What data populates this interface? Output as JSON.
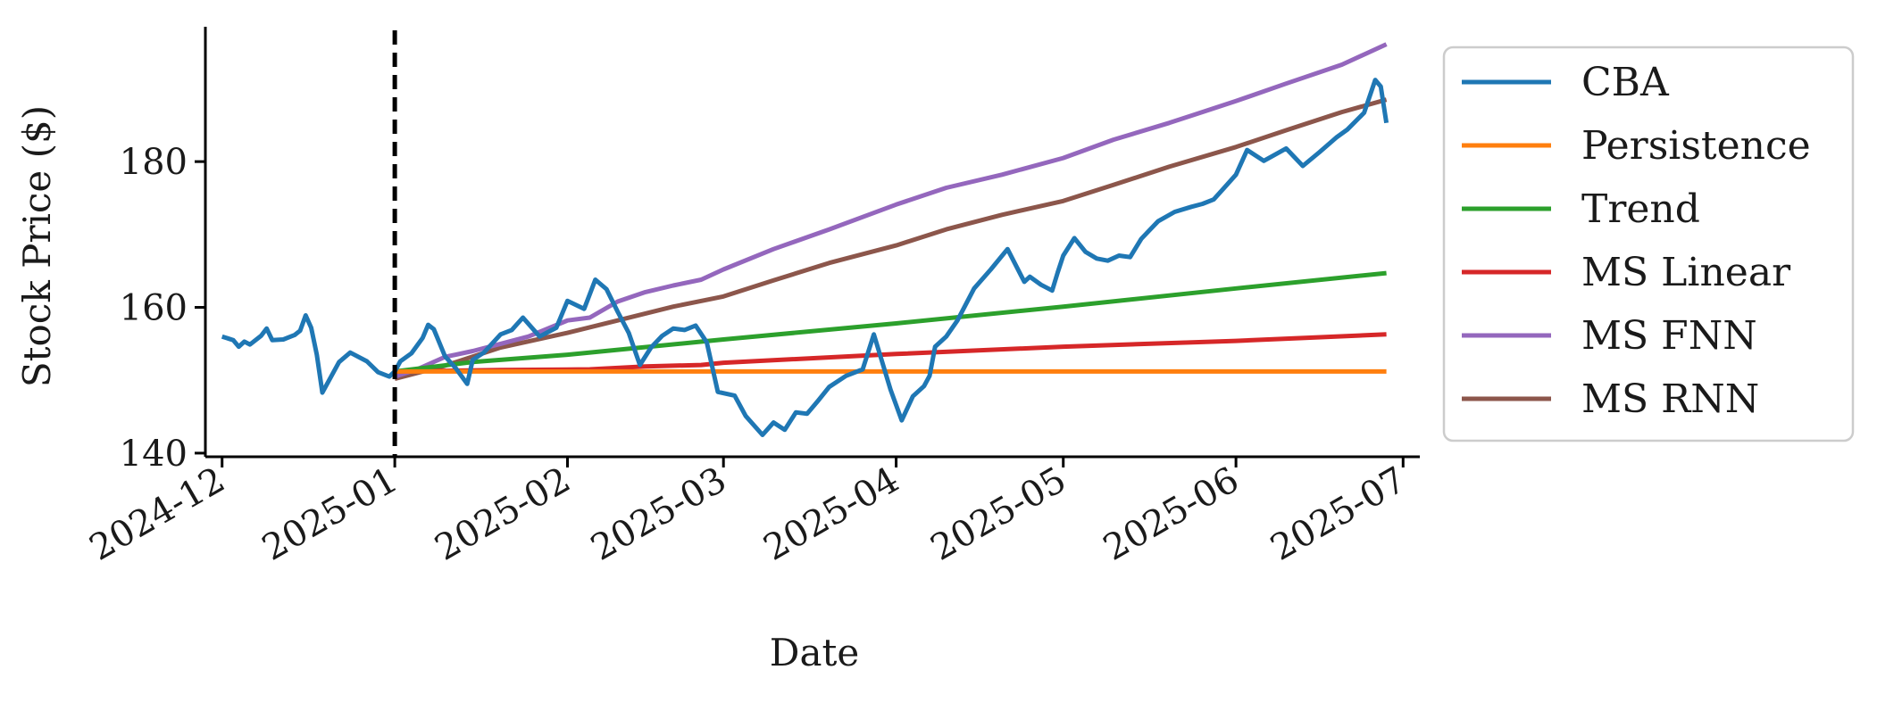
{
  "chart_data": {
    "type": "line",
    "title": "",
    "xlabel": "Date",
    "ylabel": "Stock Price ($)",
    "ylim": [
      139.5,
      198.5
    ],
    "xlim": [
      "2024-11-28",
      "2025-07-04"
    ],
    "y_ticks": [
      140,
      160,
      180
    ],
    "x_ticks": [
      "2024-12-01",
      "2025-01-01",
      "2025-02-01",
      "2025-03-01",
      "2025-04-01",
      "2025-05-01",
      "2025-06-01",
      "2025-07-01"
    ],
    "x_tick_labels": [
      "2024-12",
      "2025-01",
      "2025-02",
      "2025-03",
      "2025-04",
      "2025-05",
      "2025-06",
      "2025-07"
    ],
    "grid": false,
    "legend_position": "outside-right-top",
    "forecast_start": "2025-01-01",
    "colors": {
      "CBA": "#1f77b4",
      "Persistence": "#ff7f0e",
      "Trend": "#2ca02c",
      "MS Linear": "#d62728",
      "MS FNN": "#9467bd",
      "MS RNN": "#8c564b",
      "marker_line": "#000000"
    },
    "series": [
      {
        "name": "CBA",
        "x": [
          "2024-12-01",
          "2024-12-03",
          "2024-12-04",
          "2024-12-05",
          "2024-12-06",
          "2024-12-08",
          "2024-12-09",
          "2024-12-10",
          "2024-12-12",
          "2024-12-14",
          "2024-12-15",
          "2024-12-16",
          "2024-12-17",
          "2024-12-18",
          "2024-12-19",
          "2024-12-22",
          "2024-12-24",
          "2024-12-27",
          "2024-12-29",
          "2024-12-31",
          "2025-01-01",
          "2025-01-02",
          "2025-01-04",
          "2025-01-06",
          "2025-01-07",
          "2025-01-08",
          "2025-01-10",
          "2025-01-12",
          "2025-01-14",
          "2025-01-15",
          "2025-01-17",
          "2025-01-20",
          "2025-01-22",
          "2025-01-24",
          "2025-01-27",
          "2025-01-30",
          "2025-02-01",
          "2025-02-04",
          "2025-02-06",
          "2025-02-08",
          "2025-02-10",
          "2025-02-12",
          "2025-02-14",
          "2025-02-16",
          "2025-02-18",
          "2025-02-20",
          "2025-02-22",
          "2025-02-24",
          "2025-02-26",
          "2025-02-28",
          "2025-03-03",
          "2025-03-05",
          "2025-03-08",
          "2025-03-10",
          "2025-03-12",
          "2025-03-14",
          "2025-03-16",
          "2025-03-18",
          "2025-03-20",
          "2025-03-23",
          "2025-03-26",
          "2025-03-28",
          "2025-03-31",
          "2025-04-02",
          "2025-04-04",
          "2025-04-06",
          "2025-04-07",
          "2025-04-08",
          "2025-04-10",
          "2025-04-12",
          "2025-04-15",
          "2025-04-18",
          "2025-04-21",
          "2025-04-24",
          "2025-04-25",
          "2025-04-27",
          "2025-04-29",
          "2025-04-30",
          "2025-05-01",
          "2025-05-03",
          "2025-05-05",
          "2025-05-07",
          "2025-05-09",
          "2025-05-11",
          "2025-05-13",
          "2025-05-15",
          "2025-05-18",
          "2025-05-21",
          "2025-05-24",
          "2025-05-26",
          "2025-05-28",
          "2025-05-30",
          "2025-06-01",
          "2025-06-03",
          "2025-06-06",
          "2025-06-10",
          "2025-06-13",
          "2025-06-16",
          "2025-06-19",
          "2025-06-21",
          "2025-06-24",
          "2025-06-26",
          "2025-06-27",
          "2025-06-28"
        ],
        "values": [
          156,
          155.5,
          154.6,
          155.3,
          154.9,
          156.1,
          157.1,
          155.5,
          155.6,
          156.2,
          156.8,
          158.9,
          157.2,
          153.5,
          148.3,
          152.5,
          153.8,
          152.6,
          151.1,
          150.5,
          151.2,
          152.6,
          153.7,
          155.8,
          157.6,
          157,
          153.3,
          151.6,
          149.5,
          152.8,
          153.8,
          156.3,
          156.9,
          158.6,
          156,
          157.2,
          160.9,
          159.8,
          163.8,
          162.5,
          159.4,
          156.5,
          152.1,
          154.5,
          156.1,
          157.1,
          156.9,
          157.5,
          155.2,
          148.4,
          147.9,
          145.1,
          142.5,
          144.2,
          143.2,
          145.6,
          145.4,
          147.2,
          149.1,
          150.6,
          151.5,
          156.3,
          148.7,
          144.5,
          147.8,
          149.2,
          150.6,
          154.6,
          156,
          158.2,
          162.6,
          165.2,
          168,
          163.5,
          164.2,
          163.1,
          162.3,
          164.8,
          167.1,
          169.5,
          167.6,
          166.7,
          166.4,
          167.1,
          166.9,
          169.4,
          171.8,
          173.1,
          173.8,
          174.2,
          174.8,
          176.5,
          178.2,
          181.6,
          180.1,
          181.8,
          179.4,
          181.3,
          183.3,
          184.4,
          186.7,
          191.2,
          190.3,
          185.3
        ]
      },
      {
        "name": "Persistence",
        "x": [
          "2025-01-01",
          "2025-06-28"
        ],
        "values": [
          151.2,
          151.2
        ]
      },
      {
        "name": "Trend",
        "x": [
          "2025-01-01",
          "2025-01-15",
          "2025-02-01",
          "2025-03-01",
          "2025-04-01",
          "2025-05-01",
          "2025-06-01",
          "2025-06-28"
        ],
        "values": [
          151.2,
          152.5,
          153.5,
          155.6,
          157.8,
          160.1,
          162.6,
          164.7
        ]
      },
      {
        "name": "MS Linear",
        "x": [
          "2025-01-01",
          "2025-01-20",
          "2025-02-05",
          "2025-02-15",
          "2025-02-25",
          "2025-03-01",
          "2025-04-01",
          "2025-05-01",
          "2025-06-01",
          "2025-06-28"
        ],
        "values": [
          151.2,
          151.4,
          151.5,
          151.9,
          152.1,
          152.4,
          153.6,
          154.6,
          155.4,
          156.3
        ]
      },
      {
        "name": "MS FNN",
        "x": [
          "2025-01-01",
          "2025-01-05",
          "2025-01-10",
          "2025-01-15",
          "2025-01-20",
          "2025-01-25",
          "2025-02-01",
          "2025-02-05",
          "2025-02-10",
          "2025-02-15",
          "2025-02-20",
          "2025-02-25",
          "2025-03-01",
          "2025-03-10",
          "2025-03-20",
          "2025-04-01",
          "2025-04-10",
          "2025-04-20",
          "2025-05-01",
          "2025-05-10",
          "2025-05-20",
          "2025-06-01",
          "2025-06-10",
          "2025-06-20",
          "2025-06-28"
        ],
        "values": [
          150.5,
          151.5,
          153.2,
          154,
          155,
          156,
          158.2,
          158.6,
          160.8,
          162.1,
          163,
          163.8,
          165.2,
          168,
          170.7,
          174.1,
          176.4,
          178.2,
          180.5,
          183,
          185.3,
          188.3,
          190.7,
          193.3,
          196.1
        ]
      },
      {
        "name": "MS RNN",
        "x": [
          "2025-01-01",
          "2025-01-10",
          "2025-01-20",
          "2025-02-01",
          "2025-02-10",
          "2025-02-20",
          "2025-03-01",
          "2025-03-10",
          "2025-03-20",
          "2025-04-01",
          "2025-04-10",
          "2025-04-20",
          "2025-05-01",
          "2025-05-10",
          "2025-05-20",
          "2025-06-01",
          "2025-06-10",
          "2025-06-20",
          "2025-06-28"
        ],
        "values": [
          150.2,
          152,
          154.5,
          156.5,
          158.2,
          160.1,
          161.5,
          163.7,
          166.1,
          168.5,
          170.7,
          172.7,
          174.6,
          176.8,
          179.3,
          182,
          184.3,
          186.8,
          188.5
        ]
      }
    ]
  }
}
